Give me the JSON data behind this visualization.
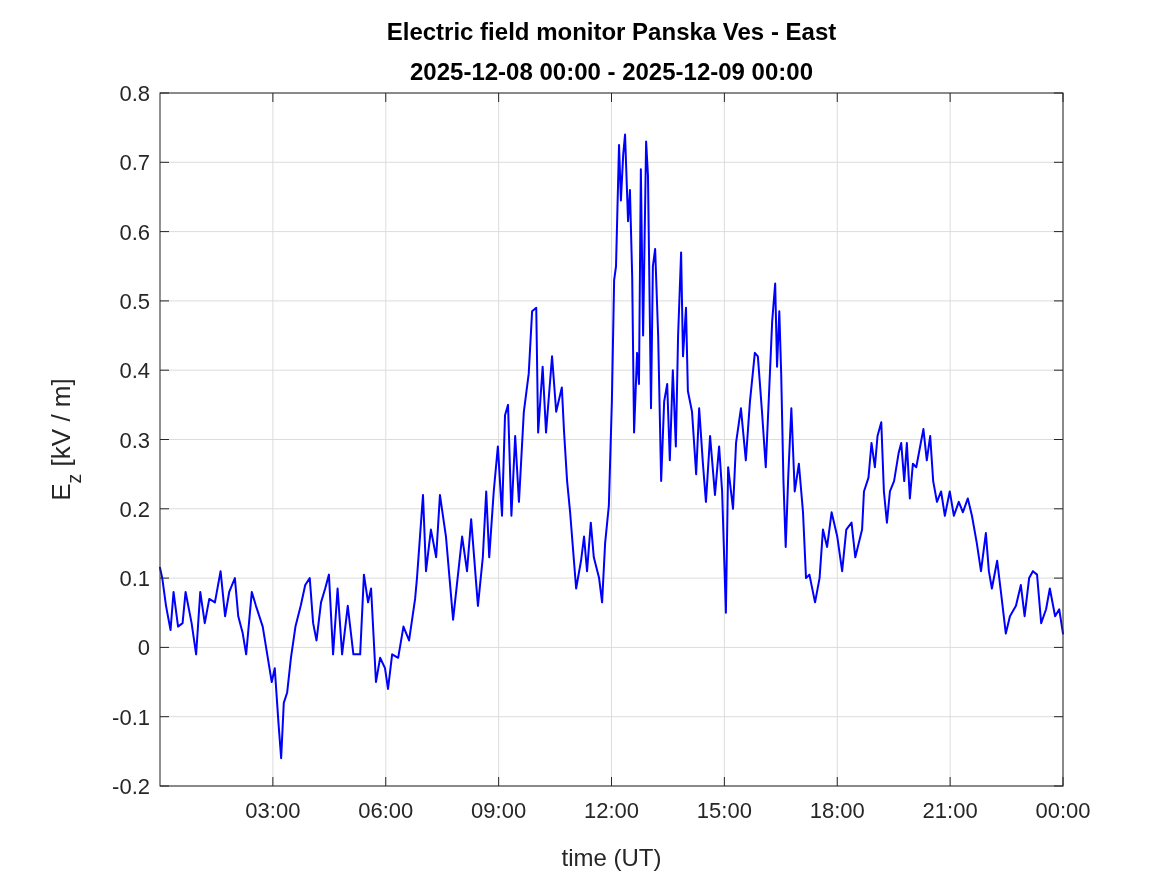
{
  "chart_data": {
    "type": "line",
    "title": "Electric field monitor Panska Ves - East",
    "subtitle": "2025-12-08 00:00 - 2025-12-09 00:00",
    "xlabel": "time (UT)",
    "ylabel": "E$_{z}$ [kV / m]",
    "xlim": [
      0,
      24
    ],
    "xticks": [
      {
        "value": 3,
        "label": "03:00"
      },
      {
        "value": 6,
        "label": "06:00"
      },
      {
        "value": 9,
        "label": "09:00"
      },
      {
        "value": 12,
        "label": "12:00"
      },
      {
        "value": 15,
        "label": "15:00"
      },
      {
        "value": 18,
        "label": "18:00"
      },
      {
        "value": 21,
        "label": "21:00"
      },
      {
        "value": 24,
        "label": "00:00"
      }
    ],
    "ylim": [
      -0.2,
      0.8
    ],
    "yticks": [
      -0.2,
      -0.1,
      0,
      0.1,
      0.2,
      0.3,
      0.4,
      0.5,
      0.6,
      0.7,
      0.8
    ],
    "grid": true,
    "marker": "none",
    "line_style": "solid",
    "x": [
      0,
      0.06,
      0.16,
      0.28,
      0.36,
      0.48,
      0.6,
      0.68,
      0.84,
      0.96,
      1.07,
      1.19,
      1.31,
      1.46,
      1.61,
      1.73,
      1.84,
      1.99,
      2.08,
      2.2,
      2.29,
      2.44,
      2.55,
      2.73,
      2.85,
      2.97,
      3.05,
      3.15,
      3.22,
      3.29,
      3.38,
      3.48,
      3.6,
      3.74,
      3.86,
      3.98,
      4.07,
      4.16,
      4.28,
      4.39,
      4.49,
      4.6,
      4.72,
      4.84,
      4.99,
      5.14,
      5.32,
      5.42,
      5.53,
      5.61,
      5.74,
      5.85,
      5.98,
      6.06,
      6.17,
      6.33,
      6.47,
      6.62,
      6.78,
      6.83,
      6.99,
      7.07,
      7.2,
      7.34,
      7.44,
      7.6,
      7.79,
      7.89,
      8.03,
      8.16,
      8.27,
      8.45,
      8.58,
      8.67,
      8.75,
      8.87,
      8.98,
      9.09,
      9.17,
      9.25,
      9.34,
      9.44,
      9.54,
      9.67,
      9.8,
      9.89,
      10.0,
      10.05,
      10.17,
      10.26,
      10.42,
      10.53,
      10.68,
      10.74,
      10.82,
      10.9,
      10.98,
      11.06,
      11.19,
      11.27,
      11.35,
      11.45,
      11.53,
      11.67,
      11.75,
      11.83,
      11.93,
      12.01,
      12.07,
      12.12,
      12.2,
      12.25,
      12.31,
      12.36,
      12.44,
      12.49,
      12.55,
      12.6,
      12.68,
      12.73,
      12.78,
      12.84,
      12.92,
      12.97,
      13.05,
      13.1,
      13.16,
      13.24,
      13.32,
      13.4,
      13.48,
      13.55,
      13.63,
      13.71,
      13.77,
      13.85,
      13.9,
      13.98,
      14.03,
      14.14,
      14.25,
      14.33,
      14.43,
      14.51,
      14.62,
      14.75,
      14.86,
      14.94,
      15.04,
      15.1,
      15.23,
      15.31,
      15.44,
      15.57,
      15.68,
      15.81,
      15.89,
      16.0,
      16.1,
      16.19,
      16.27,
      16.35,
      16.4,
      16.46,
      16.51,
      16.57,
      16.63,
      16.7,
      16.78,
      16.87,
      16.98,
      17.09,
      17.17,
      17.26,
      17.41,
      17.53,
      17.62,
      17.73,
      17.85,
      18.0,
      18.13,
      18.24,
      18.38,
      18.48,
      18.66,
      18.71,
      18.83,
      18.91,
      19.0,
      19.07,
      19.17,
      19.24,
      19.32,
      19.4,
      19.51,
      19.63,
      19.7,
      19.78,
      19.85,
      19.93,
      20.01,
      20.1,
      20.22,
      20.29,
      20.38,
      20.47,
      20.55,
      20.65,
      20.76,
      20.86,
      20.99,
      21.1,
      21.23,
      21.34,
      21.47,
      21.58,
      21.71,
      21.82,
      21.95,
      22.03,
      22.11,
      22.25,
      22.35,
      22.48,
      22.59,
      22.75,
      22.88,
      22.98,
      23.1,
      23.2,
      23.31,
      23.42,
      23.55,
      23.65,
      23.79,
      23.9,
      24.0
    ],
    "series": [
      {
        "color": "#0000ff",
        "values": [
          0.115,
          0.1,
          0.06,
          0.025,
          0.08,
          0.03,
          0.035,
          0.08,
          0.035,
          -0.01,
          0.08,
          0.035,
          0.07,
          0.065,
          0.11,
          0.045,
          0.08,
          0.1,
          0.045,
          0.02,
          -0.01,
          0.08,
          0.06,
          0.03,
          -0.01,
          -0.05,
          -0.03,
          -0.11,
          -0.16,
          -0.08,
          -0.065,
          -0.015,
          0.03,
          0.06,
          0.09,
          0.1,
          0.035,
          0.01,
          0.065,
          0.085,
          0.105,
          -0.01,
          0.085,
          -0.01,
          0.06,
          -0.01,
          -0.01,
          0.105,
          0.065,
          0.085,
          -0.05,
          -0.015,
          -0.03,
          -0.06,
          -0.01,
          -0.015,
          0.03,
          0.01,
          0.07,
          0.1,
          0.22,
          0.11,
          0.17,
          0.13,
          0.22,
          0.16,
          0.04,
          0.09,
          0.16,
          0.11,
          0.185,
          0.06,
          0.13,
          0.225,
          0.13,
          0.225,
          0.29,
          0.19,
          0.335,
          0.35,
          0.19,
          0.305,
          0.21,
          0.34,
          0.395,
          0.485,
          0.49,
          0.31,
          0.405,
          0.31,
          0.42,
          0.34,
          0.375,
          0.31,
          0.24,
          0.195,
          0.14,
          0.085,
          0.125,
          0.16,
          0.11,
          0.18,
          0.13,
          0.1,
          0.065,
          0.15,
          0.205,
          0.355,
          0.53,
          0.55,
          0.725,
          0.645,
          0.71,
          0.74,
          0.615,
          0.66,
          0.535,
          0.31,
          0.425,
          0.38,
          0.69,
          0.45,
          0.73,
          0.68,
          0.345,
          0.55,
          0.575,
          0.45,
          0.24,
          0.355,
          0.38,
          0.27,
          0.4,
          0.29,
          0.45,
          0.57,
          0.42,
          0.49,
          0.37,
          0.34,
          0.25,
          0.345,
          0.265,
          0.21,
          0.305,
          0.22,
          0.29,
          0.225,
          0.05,
          0.26,
          0.2,
          0.295,
          0.345,
          0.27,
          0.355,
          0.425,
          0.42,
          0.34,
          0.26,
          0.37,
          0.47,
          0.525,
          0.405,
          0.485,
          0.395,
          0.24,
          0.145,
          0.25,
          0.345,
          0.225,
          0.265,
          0.195,
          0.1,
          0.105,
          0.065,
          0.1,
          0.17,
          0.145,
          0.195,
          0.16,
          0.11,
          0.17,
          0.18,
          0.13,
          0.17,
          0.225,
          0.245,
          0.295,
          0.26,
          0.305,
          0.325,
          0.225,
          0.18,
          0.225,
          0.24,
          0.28,
          0.295,
          0.24,
          0.295,
          0.215,
          0.265,
          0.26,
          0.295,
          0.315,
          0.27,
          0.305,
          0.24,
          0.21,
          0.225,
          0.19,
          0.225,
          0.19,
          0.21,
          0.195,
          0.215,
          0.19,
          0.15,
          0.11,
          0.165,
          0.11,
          0.085,
          0.125,
          0.08,
          0.02,
          0.045,
          0.06,
          0.09,
          0.045,
          0.1,
          0.11,
          0.105,
          0.035,
          0.055,
          0.085,
          0.045,
          0.055,
          0.02
        ]
      }
    ]
  }
}
